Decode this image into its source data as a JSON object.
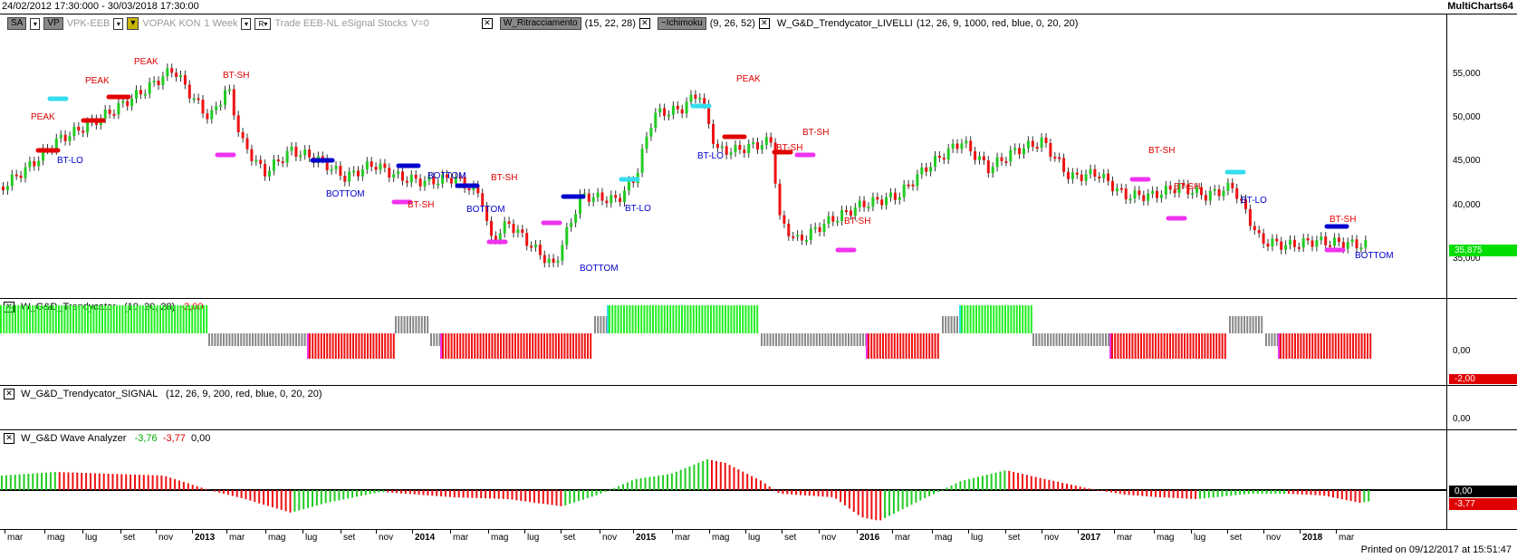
{
  "header": {
    "date_range": "24/02/2012 17:30:000 - 30/03/2018 17:30:00",
    "app_name": "MultiCharts64"
  },
  "main_toolbar": {
    "sa_label": "SA",
    "vp_label": "VP",
    "symbol": "VPK-EEB",
    "symbol_name": "VOPAK KON",
    "interval": "1 Week",
    "r_label": "R",
    "data_source": "Trade  EEB-NL  eSignal  Stocks",
    "volume": "V=0",
    "study1_name": "W_Ritracciamento",
    "study1_params": "(15, 22, 28)",
    "study2_name": "~Ichimoku",
    "study2_params": "(9, 26, 52)",
    "study3_name": "W_G&D_Trendycator_LIVELLI",
    "study3_params": "(12, 26, 9, 1000, red, blue, 0, 20, 20)"
  },
  "price_axis": {
    "ticks": [
      "55,000",
      "50,000",
      "45,000",
      "40,000",
      "35,000"
    ],
    "last_price": "35,875",
    "last_price_color": "#00dd00"
  },
  "chart_annotations": [
    {
      "text": "PEAK",
      "color": "#e00000"
    },
    {
      "text": "PEAK",
      "color": "#e00000"
    },
    {
      "text": "PEAK",
      "color": "#e00000"
    },
    {
      "text": "BT-SH",
      "color": "#e00000"
    },
    {
      "text": "BT-LO",
      "color": "#0000cc"
    },
    {
      "text": "BOTTOM",
      "color": "#0000cc"
    },
    {
      "text": "BT-SH",
      "color": "#e00000"
    },
    {
      "text": "BOTTOM",
      "color": "#0000cc"
    },
    {
      "text": "BT-SH",
      "color": "#e00000"
    },
    {
      "text": "BOTTOM",
      "color": "#0000cc"
    },
    {
      "text": "BOTTOM",
      "color": "#0000cc"
    },
    {
      "text": "BT-LO",
      "color": "#0000cc"
    },
    {
      "text": "BT-LO",
      "color": "#0000cc"
    },
    {
      "text": "PEAK",
      "color": "#e00000"
    },
    {
      "text": "BT-SH",
      "color": "#e00000"
    },
    {
      "text": "BT-SH",
      "color": "#e00000"
    },
    {
      "text": "BT-SH",
      "color": "#e00000"
    },
    {
      "text": "BT-SH",
      "color": "#e00000"
    },
    {
      "text": "BT-SH",
      "color": "#e00000"
    },
    {
      "text": "BT-LO",
      "color": "#0000cc"
    },
    {
      "text": "BT-SH",
      "color": "#e00000"
    },
    {
      "text": "BOTTOM",
      "color": "#0000cc"
    }
  ],
  "trendycator": {
    "name": "W_G&D_Trendycator",
    "params": "(10, 20, 28)",
    "value": "-2,00",
    "value_color": "#e00000",
    "axis_tick": "0,00",
    "badge": "-2,00",
    "badge_color": "#e00000"
  },
  "signal": {
    "name": "W_G&D_Trendycator_SIGNAL",
    "params": "(12, 26, 9, 200, red, blue, 0, 20, 20)",
    "axis_tick": "0,00"
  },
  "wave": {
    "name": "W_G&D Wave Analyzer",
    "value1": "-3,76",
    "value1_color": "#00aa00",
    "value2": "-3,77",
    "value2_color": "#e00000",
    "value3": "0,00",
    "badge_zero": "0,00",
    "badge_zero_color": "#000000",
    "badge_val": "-3,77",
    "badge_val_color": "#e00000"
  },
  "time_axis": [
    {
      "label": "mar",
      "bold": false
    },
    {
      "label": "mag",
      "bold": false
    },
    {
      "label": "lug",
      "bold": false
    },
    {
      "label": "set",
      "bold": false
    },
    {
      "label": "nov",
      "bold": false
    },
    {
      "label": "2013",
      "bold": true
    },
    {
      "label": "mar",
      "bold": false
    },
    {
      "label": "mag",
      "bold": false
    },
    {
      "label": "lug",
      "bold": false
    },
    {
      "label": "set",
      "bold": false
    },
    {
      "label": "nov",
      "bold": false
    },
    {
      "label": "2014",
      "bold": true
    },
    {
      "label": "mar",
      "bold": false
    },
    {
      "label": "mag",
      "bold": false
    },
    {
      "label": "lug",
      "bold": false
    },
    {
      "label": "set",
      "bold": false
    },
    {
      "label": "nov",
      "bold": false
    },
    {
      "label": "2015",
      "bold": true
    },
    {
      "label": "mar",
      "bold": false
    },
    {
      "label": "mag",
      "bold": false
    },
    {
      "label": "lug",
      "bold": false
    },
    {
      "label": "set",
      "bold": false
    },
    {
      "label": "nov",
      "bold": false
    },
    {
      "label": "2016",
      "bold": true
    },
    {
      "label": "mar",
      "bold": false
    },
    {
      "label": "mag",
      "bold": false
    },
    {
      "label": "lug",
      "bold": false
    },
    {
      "label": "set",
      "bold": false
    },
    {
      "label": "nov",
      "bold": false
    },
    {
      "label": "2017",
      "bold": true
    },
    {
      "label": "mar",
      "bold": false
    },
    {
      "label": "mag",
      "bold": false
    },
    {
      "label": "lug",
      "bold": false
    },
    {
      "label": "set",
      "bold": false
    },
    {
      "label": "nov",
      "bold": false
    },
    {
      "label": "2018",
      "bold": true
    },
    {
      "label": "mar",
      "bold": false
    }
  ],
  "footer": {
    "printed": "Printed on 09/12/2017 at 15:51:47"
  }
}
